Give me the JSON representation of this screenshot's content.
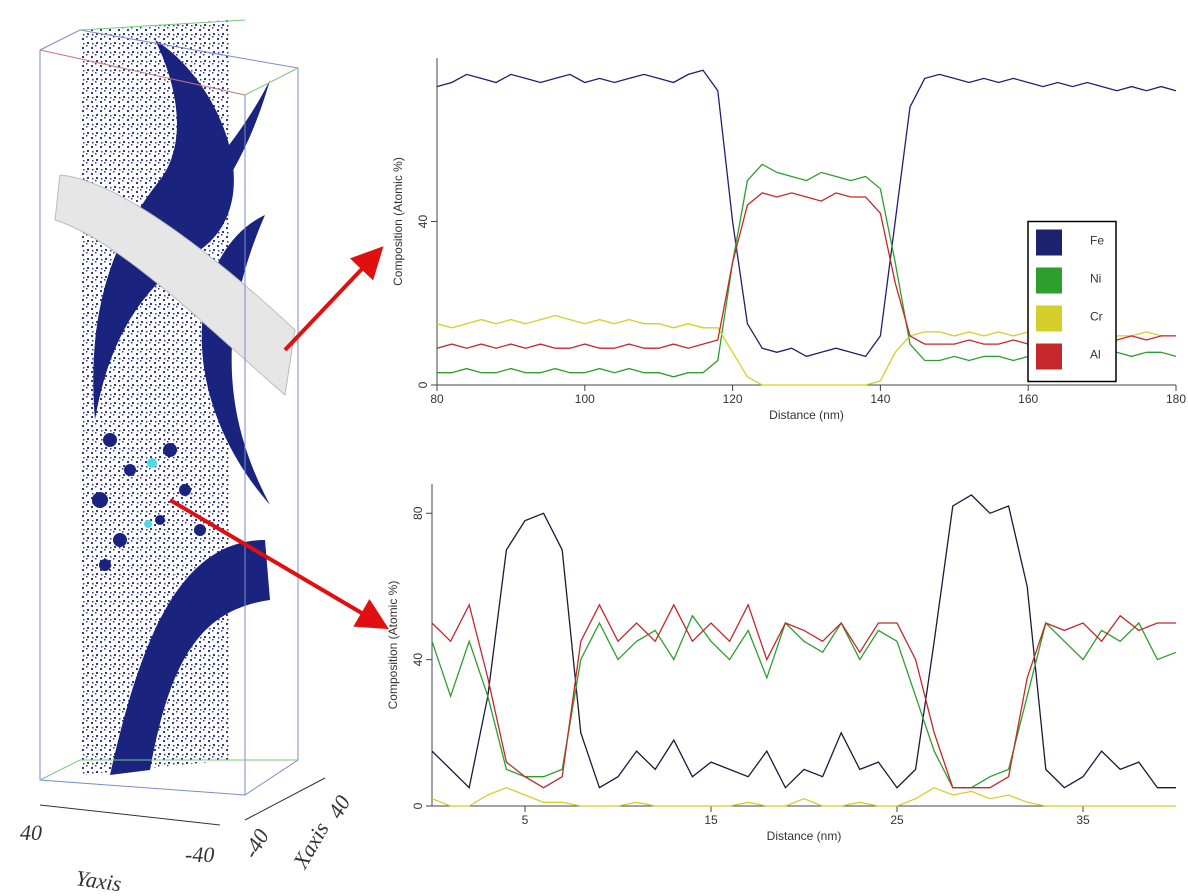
{
  "reconstruction": {
    "y_axis_ticks": [
      "40",
      "-40"
    ],
    "y_axis_title": "Yaxis",
    "x_axis_ticks": [
      "-40",
      "40"
    ],
    "x_axis_title": "Xaxis"
  },
  "chart_data": [
    {
      "type": "line",
      "xlabel": "Distance (nm)",
      "ylabel": "Composition (Atomic %)",
      "x": [
        80,
        82,
        84,
        86,
        88,
        90,
        92,
        94,
        96,
        98,
        100,
        102,
        104,
        106,
        108,
        110,
        112,
        114,
        116,
        118,
        120,
        122,
        124,
        126,
        128,
        130,
        132,
        134,
        136,
        138,
        140,
        142,
        144,
        146,
        148,
        150,
        152,
        154,
        156,
        158,
        160,
        162,
        164,
        166,
        168,
        170,
        172,
        174,
        176,
        178,
        180
      ],
      "xlim": [
        80,
        180
      ],
      "xticks": [
        80,
        100,
        120,
        140,
        160,
        180
      ],
      "ylim": [
        0,
        80
      ],
      "yticks": [
        0,
        40
      ],
      "legend": true,
      "legend_loc": "right",
      "series": [
        {
          "name": "Fe",
          "color": "#1c2270",
          "values": [
            73,
            74,
            76,
            75,
            74,
            76,
            75,
            74,
            75,
            76,
            74,
            75,
            74,
            75,
            76,
            75,
            74,
            76,
            77,
            72,
            40,
            15,
            9,
            8,
            9,
            7,
            8,
            9,
            8,
            7,
            12,
            40,
            68,
            75,
            76,
            75,
            74,
            75,
            74,
            75,
            74,
            73,
            74,
            73,
            74,
            73,
            72,
            73,
            72,
            73,
            72
          ]
        },
        {
          "name": "Ni",
          "color": "#2e9e2e",
          "values": [
            3,
            3,
            4,
            3,
            3,
            4,
            3,
            3,
            4,
            3,
            3,
            4,
            3,
            4,
            3,
            3,
            2,
            3,
            3,
            6,
            30,
            50,
            54,
            52,
            51,
            50,
            52,
            51,
            50,
            51,
            48,
            30,
            10,
            6,
            6,
            7,
            6,
            7,
            7,
            6,
            7,
            8,
            7,
            7,
            8,
            7,
            8,
            7,
            8,
            8,
            7
          ]
        },
        {
          "name": "Cr",
          "color": "#d4cf2a",
          "values": [
            15,
            14,
            15,
            16,
            15,
            16,
            15,
            16,
            17,
            16,
            15,
            16,
            15,
            16,
            15,
            15,
            14,
            15,
            14,
            14,
            8,
            2,
            0,
            0,
            0,
            0,
            0,
            0,
            0,
            0,
            1,
            8,
            12,
            13,
            13,
            12,
            13,
            12,
            13,
            12,
            13,
            12,
            12,
            13,
            12,
            13,
            12,
            12,
            13,
            12,
            12
          ]
        },
        {
          "name": "Al",
          "color": "#c4282a",
          "values": [
            9,
            10,
            9,
            10,
            9,
            10,
            9,
            10,
            9,
            9,
            10,
            9,
            9,
            10,
            9,
            9,
            10,
            9,
            10,
            11,
            30,
            44,
            47,
            46,
            47,
            46,
            45,
            47,
            46,
            46,
            42,
            25,
            12,
            10,
            10,
            10,
            11,
            10,
            10,
            11,
            10,
            11,
            10,
            11,
            11,
            10,
            11,
            12,
            11,
            12,
            12
          ]
        }
      ]
    },
    {
      "type": "line",
      "xlabel": "Distance (nm)",
      "ylabel": "Composition (Atomic %)",
      "x": [
        0,
        1,
        2,
        3,
        4,
        5,
        6,
        7,
        8,
        9,
        10,
        11,
        12,
        13,
        14,
        15,
        16,
        17,
        18,
        19,
        20,
        21,
        22,
        23,
        24,
        25,
        26,
        27,
        28,
        29,
        30,
        31,
        32,
        33,
        34,
        35,
        36,
        37,
        38,
        39,
        40
      ],
      "xlim": [
        0,
        40
      ],
      "xticks": [
        5,
        15,
        25,
        35
      ],
      "ylim": [
        0,
        88
      ],
      "yticks": [
        0,
        40,
        80
      ],
      "legend": false,
      "series": [
        {
          "color": "#1a1a3a",
          "values": [
            15,
            10,
            5,
            30,
            70,
            78,
            80,
            70,
            20,
            5,
            8,
            15,
            10,
            18,
            8,
            12,
            10,
            8,
            15,
            5,
            10,
            8,
            20,
            10,
            12,
            5,
            10,
            45,
            82,
            85,
            80,
            82,
            60,
            10,
            5,
            8,
            15,
            10,
            12,
            5,
            5
          ]
        },
        {
          "color": "#2e9e2e",
          "values": [
            45,
            30,
            45,
            30,
            10,
            8,
            8,
            10,
            40,
            50,
            40,
            45,
            48,
            40,
            52,
            45,
            40,
            48,
            35,
            50,
            45,
            42,
            50,
            40,
            48,
            45,
            30,
            15,
            5,
            5,
            8,
            10,
            30,
            50,
            45,
            40,
            48,
            45,
            50,
            40,
            42
          ]
        },
        {
          "color": "#d4cf2a",
          "values": [
            2,
            0,
            0,
            3,
            5,
            3,
            1,
            1,
            0,
            0,
            0,
            1,
            0,
            0,
            0,
            0,
            0,
            1,
            0,
            0,
            2,
            0,
            0,
            1,
            0,
            0,
            2,
            5,
            3,
            4,
            2,
            3,
            1,
            0,
            0,
            0,
            0,
            0,
            0,
            0,
            0
          ]
        },
        {
          "color": "#c4282a",
          "values": [
            50,
            45,
            55,
            35,
            12,
            8,
            5,
            8,
            45,
            55,
            45,
            50,
            45,
            55,
            45,
            50,
            45,
            55,
            40,
            50,
            48,
            45,
            50,
            42,
            50,
            50,
            40,
            20,
            5,
            5,
            5,
            8,
            35,
            50,
            48,
            50,
            45,
            52,
            48,
            50,
            50
          ]
        }
      ]
    }
  ]
}
